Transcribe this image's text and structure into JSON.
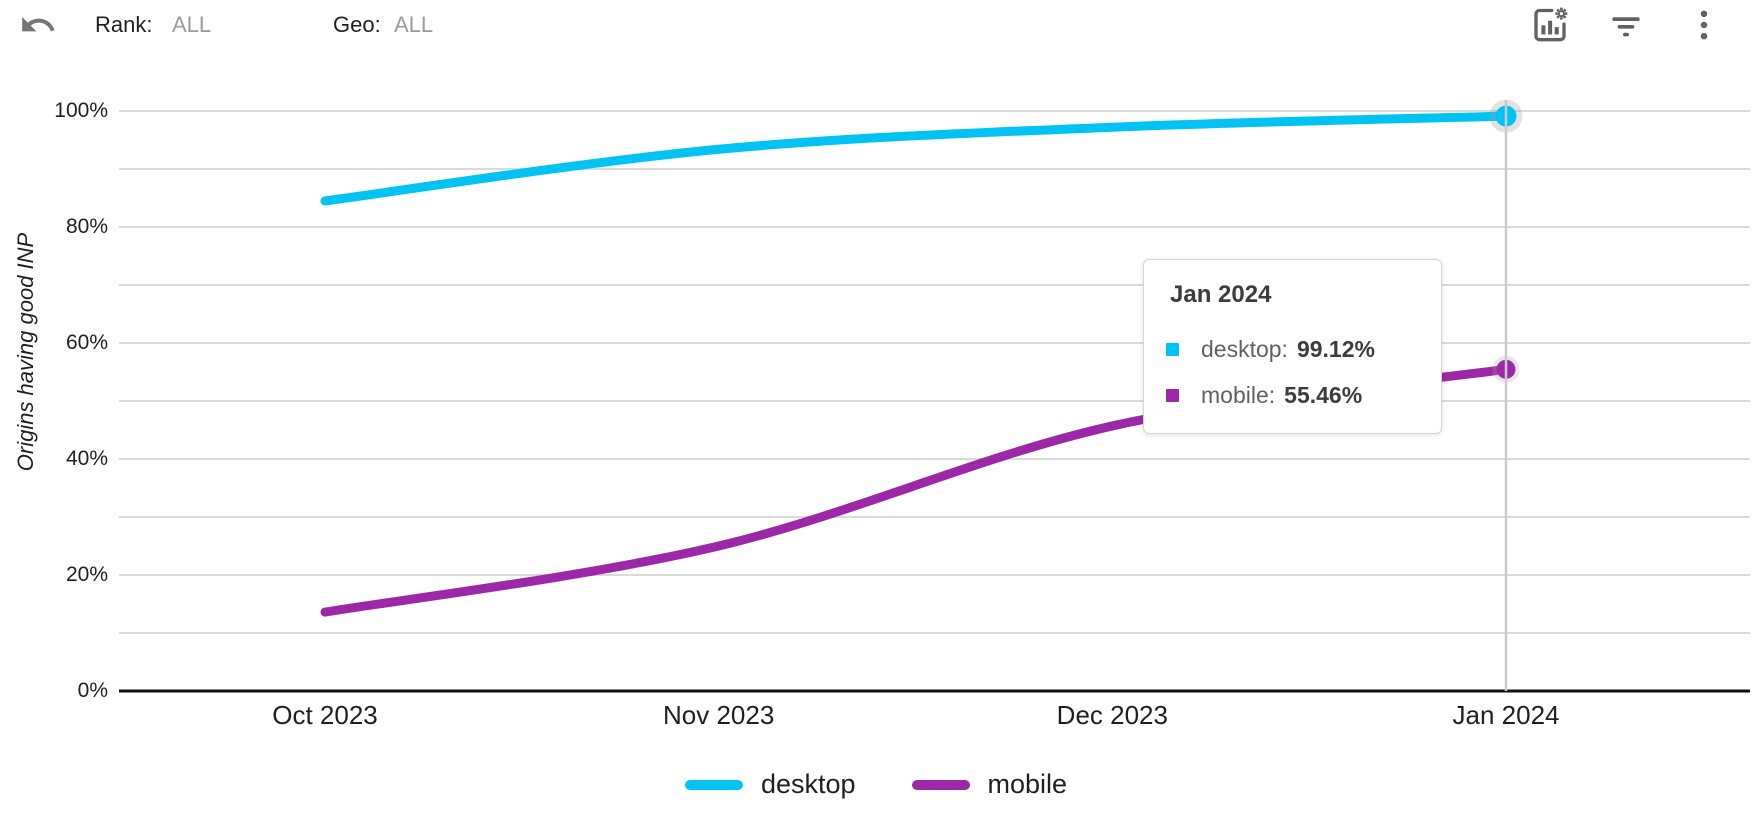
{
  "header": {
    "rank_label": "Rank:",
    "rank_value": "ALL",
    "geo_label": "Geo:",
    "geo_value": "ALL",
    "icons": [
      "undo-icon",
      "chart-settings-icon",
      "filter-icon",
      "kebab-menu-icon"
    ]
  },
  "chart_data": {
    "type": "line",
    "title": "",
    "xlabel": "",
    "ylabel": "Origins having good INP",
    "categories": [
      "Oct 2023",
      "Nov 2023",
      "Dec 2023",
      "Jan 2024"
    ],
    "series": [
      {
        "name": "desktop",
        "color": "#00c3f4",
        "values": [
          84.5,
          93.4,
          97.2,
          99.12
        ]
      },
      {
        "name": "mobile",
        "color": "#9c28a8",
        "values": [
          13.6,
          25.0,
          45.7,
          55.46
        ]
      }
    ],
    "ylim": [
      0,
      100
    ],
    "ytick_labels": [
      "0%",
      "20%",
      "40%",
      "60%",
      "80%",
      "100%"
    ],
    "grid_step": 10,
    "grid_on": true,
    "legend_position": "bottom",
    "highlighted_index": 3,
    "highlighted_category": "Jan 2024"
  },
  "tooltip": {
    "title": "Jan 2024",
    "rows": [
      {
        "label": "desktop:",
        "value": "99.12%",
        "color": "#00c3f4"
      },
      {
        "label": "mobile:",
        "value": "55.46%",
        "color": "#9c28a8"
      }
    ]
  },
  "colors": {
    "grid": "#dadada",
    "axis": "#111111",
    "crosshair": "#cacaca",
    "icon": "#616161"
  }
}
